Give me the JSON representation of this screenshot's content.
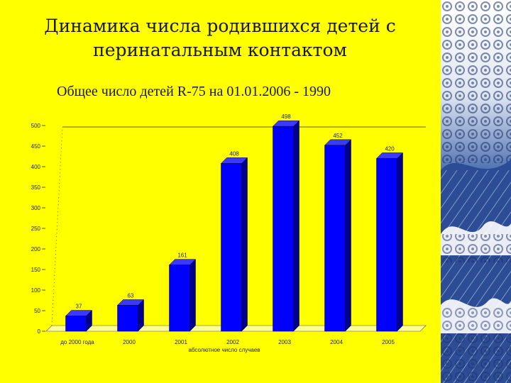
{
  "slide": {
    "title_line1": "Динамика числа родившихся детей с",
    "title_line2": "перинатальным контактом",
    "subtitle": "Общее число детей R-75 на 01.01.2006 - 1990"
  },
  "chart_data": {
    "type": "bar",
    "categories": [
      "до 2000 года",
      "2000",
      "2001",
      "2002",
      "2003",
      "2004",
      "2005"
    ],
    "values": [
      37,
      63,
      161,
      408,
      498,
      452,
      420
    ],
    "value_labels": [
      "37",
      "63",
      "161",
      "408",
      "498",
      "452",
      "420"
    ],
    "xlabel": "абсолютное число случаев",
    "ylabel": "",
    "ylim": [
      0,
      500
    ],
    "yticks": [
      0,
      50,
      100,
      150,
      200,
      250,
      300,
      350,
      400,
      450,
      500
    ],
    "grid": false,
    "bar_color": "#0000ff",
    "floor_color": "#ffff99"
  },
  "colors": {
    "background": "#ffff00",
    "bar": "#0000ff",
    "text": "#1a1a1a"
  },
  "decoration": {
    "icon": "ocean-wave-icon"
  }
}
